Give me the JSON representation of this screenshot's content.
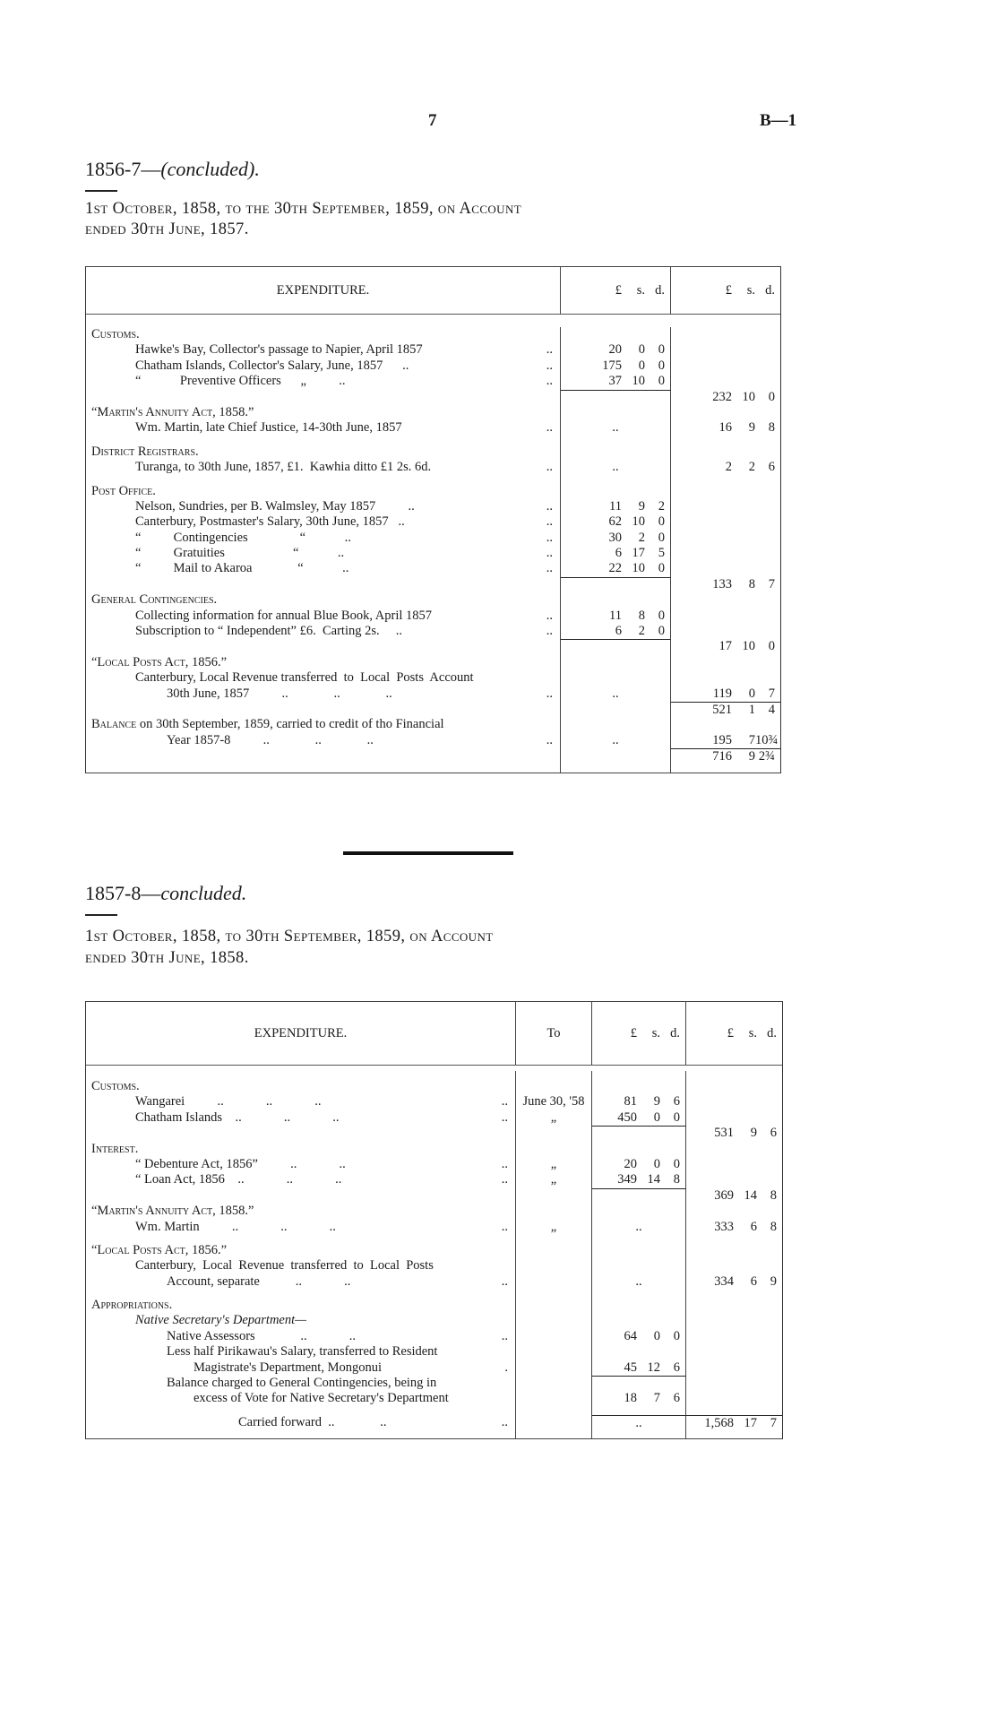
{
  "page": {
    "number": "7",
    "series": "B—1"
  },
  "section1": {
    "title_prefix": "1856-7—",
    "title_italic": "(concluded).",
    "heading_line1": "1st October, 1858, to the 30th September, 1859, on Account",
    "heading_line2": "ended 30th June, 1857.",
    "columns": {
      "expenditure": "EXPENDITURE.",
      "pounds": "£",
      "shillings": "s.",
      "pence": "d."
    },
    "rows": [
      {
        "label": "Customs.",
        "style": "sc"
      },
      {
        "label": "Hawke's Bay, Collector's passage to Napier, April 1857",
        "indent": 1,
        "dots": "..",
        "a": [
          "20",
          "0",
          "0"
        ]
      },
      {
        "label": "Chatham Islands, Collector's Salary, June, 1857      ..",
        "indent": 1,
        "dots": "..",
        "a": [
          "175",
          "0",
          "0"
        ]
      },
      {
        "label": "“            Preventive Officers      „          ..",
        "indent": 1,
        "dots": "..",
        "a": [
          "37",
          "10",
          "0"
        ]
      },
      {
        "ruleA": true,
        "b": [
          "232",
          "10",
          "0"
        ]
      },
      {
        "label": "“Martin's Annuity Act, 1858.”",
        "style": "sc"
      },
      {
        "label": "Wm. Martin, late Chief Justice, 14-30th June, 1857",
        "indent": 1,
        "dots": "..",
        "adots": "..",
        "b": [
          "16",
          "9",
          "8"
        ]
      },
      {
        "spacer": true
      },
      {
        "label": "District Registrars.",
        "style": "sc"
      },
      {
        "label": "Turanga, to 30th June, 1857, £1.  Kawhia ditto £1 2s. 6d.",
        "indent": 1,
        "dots": "..",
        "adots": "..",
        "b": [
          "2",
          "2",
          "6"
        ]
      },
      {
        "spacer": true
      },
      {
        "label": "Post Office.",
        "style": "sc"
      },
      {
        "label": "Nelson, Sundries, per B. Walmsley, May 1857          ..",
        "indent": 1,
        "dots": "..",
        "a": [
          "11",
          "9",
          "2"
        ]
      },
      {
        "label": "Canterbury, Postmaster's Salary, 30th June, 1857   ..",
        "indent": 1,
        "dots": "..",
        "a": [
          "62",
          "10",
          "0"
        ]
      },
      {
        "label": "“          Contingencies                “            ..",
        "indent": 1,
        "dots": "..",
        "a": [
          "30",
          "2",
          "0"
        ]
      },
      {
        "label": "“          Gratuities                     “            ..",
        "indent": 1,
        "dots": "..",
        "a": [
          "6",
          "17",
          "5"
        ]
      },
      {
        "label": "“          Mail to Akaroa              “            ..",
        "indent": 1,
        "dots": "..",
        "a": [
          "22",
          "10",
          "0"
        ]
      },
      {
        "ruleA": true,
        "b": [
          "133",
          "8",
          "7"
        ]
      },
      {
        "label": "General Contingencies.",
        "style": "sc"
      },
      {
        "label": "Collecting information for annual Blue Book, April 1857",
        "indent": 1,
        "dots": "..",
        "a": [
          "11",
          "8",
          "0"
        ]
      },
      {
        "label": "Subscription to “ Independent” £6.  Carting 2s.     ..",
        "indent": 1,
        "dots": "..",
        "a": [
          "6",
          "2",
          "0"
        ]
      },
      {
        "ruleA": true,
        "b": [
          "17",
          "10",
          "0"
        ]
      },
      {
        "label": "“Local Posts Act, 1856.”",
        "style": "sc"
      },
      {
        "label": "Canterbury, Local Revenue transferred  to  Local  Posts  Account",
        "indent": 1
      },
      {
        "label": "30th June, 1857          ..              ..              ..",
        "indent": 2,
        "dots": "..",
        "adots": "..",
        "b": [
          "119",
          "0",
          "7"
        ]
      },
      {
        "ruleB": true,
        "b": [
          "521",
          "1",
          "4"
        ]
      },
      {
        "label": "Balance on 30th September, 1859, carried to credit of tho Financial",
        "style": "sc-first"
      },
      {
        "label": "Year 1857-8          ..              ..              ..",
        "indent": 2,
        "dots": "..",
        "adots": "..",
        "b": [
          "195",
          "7",
          "10¾"
        ]
      },
      {
        "ruleB": true,
        "b": [
          "716",
          "9",
          "2¾"
        ]
      },
      {
        "spacer": true
      }
    ]
  },
  "section2": {
    "title_prefix": "1857-8—",
    "title_italic": "concluded.",
    "heading_line1": "1st October, 1858, to 30th September, 1859, on Account",
    "heading_line2": "ended 30th June, 1858.",
    "columns": {
      "expenditure": "EXPENDITURE.",
      "to": "To",
      "pounds": "£",
      "shillings": "s.",
      "pence": "d."
    },
    "rows": [
      {
        "spacer": true
      },
      {
        "label": "Customs.",
        "style": "sc"
      },
      {
        "label": "Wangarei          ..             ..             ..",
        "indent": 1,
        "dots": "..",
        "to": "June 30, '58",
        "a": [
          "81",
          "9",
          "6"
        ]
      },
      {
        "label": "Chatham Islands    ..             ..             ..",
        "indent": 1,
        "dots": "..",
        "to": "„",
        "a": [
          "450",
          "0",
          "0"
        ]
      },
      {
        "ruleA": true,
        "b": [
          "531",
          "9",
          "6"
        ]
      },
      {
        "label": "Interest.",
        "style": "sc"
      },
      {
        "label": "“ Debenture Act, 1856”          ..             ..",
        "indent": 1,
        "dots": "..",
        "to": "„",
        "a": [
          "20",
          "0",
          "0"
        ]
      },
      {
        "label": "“ Loan Act, 1856    ..             ..             ..",
        "indent": 1,
        "dots": "..",
        "to": "„",
        "a": [
          "349",
          "14",
          "8"
        ]
      },
      {
        "ruleA": true,
        "b": [
          "369",
          "14",
          "8"
        ]
      },
      {
        "label": "“Martin's Annuity Act, 1858.”",
        "style": "sc"
      },
      {
        "label": "Wm. Martin          ..             ..             ..",
        "indent": 1,
        "dots": "..",
        "to": "„",
        "adots": "..",
        "b": [
          "333",
          "6",
          "8"
        ]
      },
      {
        "spacer": true
      },
      {
        "label": "“Local Posts Act, 1856.”",
        "style": "sc"
      },
      {
        "label": "Canterbury,  Local  Revenue  transferred  to  Local  Posts",
        "indent": 1
      },
      {
        "label": "Account, separate           ..             ..",
        "indent": 2,
        "dots": "..",
        "adots": "..",
        "b": [
          "334",
          "6",
          "9"
        ]
      },
      {
        "spacer": true
      },
      {
        "label": "Appropriations.",
        "style": "sc"
      },
      {
        "label": "Native Secretary's Department—",
        "indent": 1,
        "style": "ital"
      },
      {
        "label": "Native Assessors              ..             ..",
        "indent": 2,
        "dots": "..",
        "a": [
          "64",
          "0",
          "0"
        ]
      },
      {
        "label": "Less half Pirikawau's Salary, transferred to Resident",
        "indent": 2
      },
      {
        "label": "Magistrate's Department, Mongonui",
        "indent": 3,
        "dots": ".",
        "a": [
          "45",
          "12",
          "6"
        ]
      },
      {
        "label": "Balance charged to General Contingencies, being in",
        "indent": 2,
        "ruleA": true
      },
      {
        "label": "excess of Vote for Native Secretary's Department",
        "indent": 3,
        "a": [
          "18",
          "7",
          "6"
        ]
      },
      {
        "spacer": true
      },
      {
        "label": "Carried forward  ..              ..",
        "style": "ctr",
        "dots": "..",
        "ruleA": true,
        "ruleB": true,
        "adots": "..",
        "b": [
          "1,568",
          "17",
          "7"
        ]
      },
      {
        "spacer": true
      }
    ]
  }
}
